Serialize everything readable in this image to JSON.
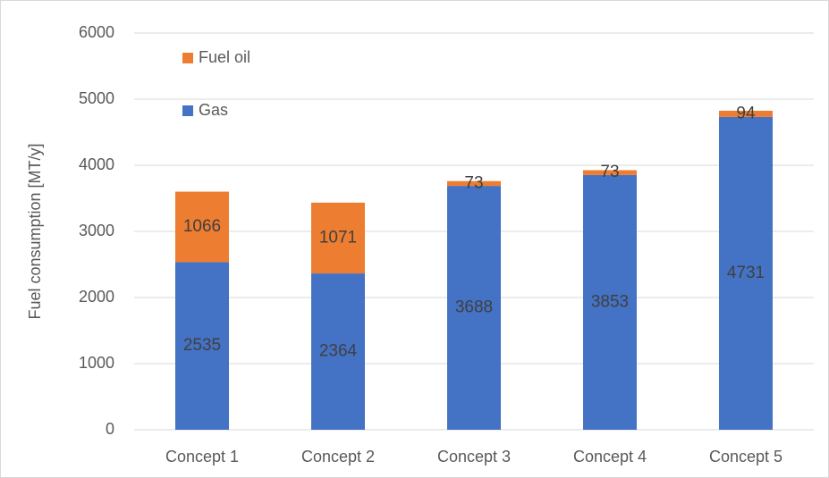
{
  "chart_data": {
    "type": "stacked_bar",
    "y_label": "Fuel consumption [MT/y]",
    "categories": [
      "Concept 1",
      "Concept 2",
      "Concept 3",
      "Concept 4",
      "Concept 5"
    ],
    "series": [
      {
        "name": "Gas",
        "color": "#4472c4",
        "values": [
          2535,
          2364,
          3688,
          3853,
          4731
        ]
      },
      {
        "name": "Fuel oil",
        "color": "#ed7d31",
        "values": [
          1066,
          1071,
          73,
          73,
          94
        ]
      }
    ],
    "ylim": [
      0,
      6000
    ],
    "yticks": [
      0,
      1000,
      2000,
      3000,
      4000,
      5000,
      6000
    ],
    "grid": true,
    "legend": "top-left"
  }
}
